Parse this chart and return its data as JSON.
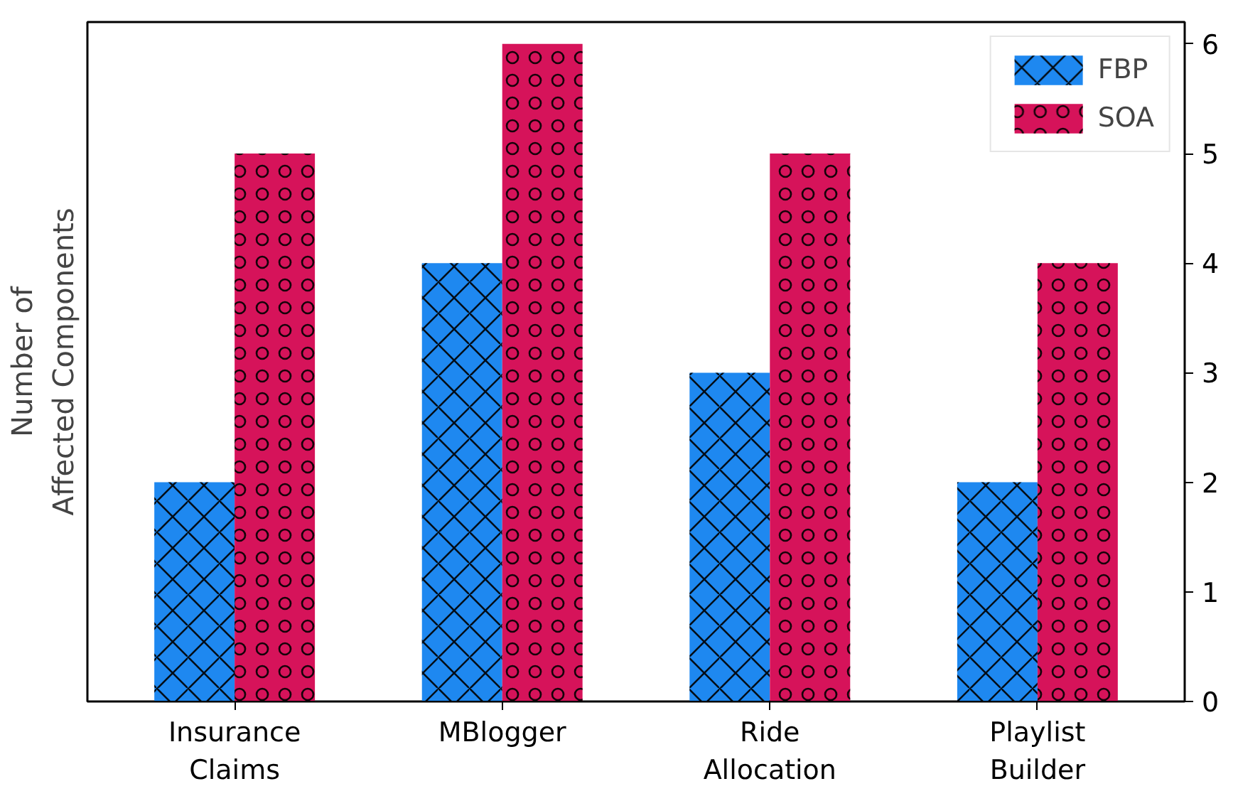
{
  "chart_data": {
    "type": "bar",
    "ylabel": "Number of\nAffected Components",
    "categories": [
      "Insurance\nClaims",
      "MBlogger",
      "Ride\nAllocation",
      "Playlist\nBuilder"
    ],
    "series": [
      {
        "name": "FBP",
        "color": "#1e88f0",
        "values": [
          2,
          4,
          3,
          2
        ]
      },
      {
        "name": "SOA",
        "color": "#d6135a",
        "values": [
          5,
          6,
          5,
          4
        ]
      }
    ],
    "ylim": [
      0,
      6.2
    ],
    "yticks": [
      0,
      1,
      2,
      3,
      4,
      5,
      6
    ],
    "grid": false,
    "legend": "top right"
  }
}
